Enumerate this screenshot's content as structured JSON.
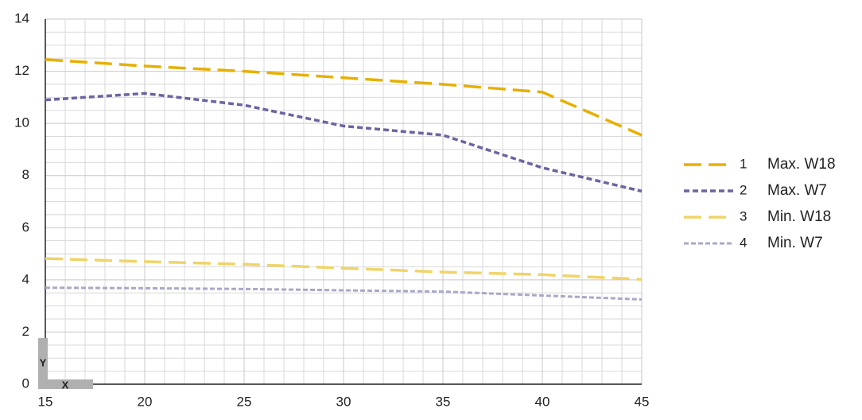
{
  "chart_data": {
    "type": "line",
    "xlabel": "X",
    "ylabel": "Y",
    "x": [
      15,
      20,
      25,
      30,
      35,
      40,
      45
    ],
    "series": [
      {
        "id": "1",
        "name": "Max. W18",
        "color": "#e6b000",
        "dash": "22 9",
        "width": 3.5,
        "values": [
          12.45,
          12.2,
          12.0,
          11.75,
          11.5,
          11.2,
          9.55
        ]
      },
      {
        "id": "2",
        "name": "Max. W7",
        "color": "#6b64a2",
        "dash": "7 4",
        "width": 3.5,
        "values": [
          10.9,
          11.15,
          10.7,
          9.9,
          9.55,
          8.3,
          7.4
        ]
      },
      {
        "id": "3",
        "name": "Min. W18",
        "color": "#f0d468",
        "dash": "22 9",
        "width": 3.5,
        "values": [
          4.82,
          4.7,
          4.6,
          4.45,
          4.3,
          4.2,
          4.02
        ]
      },
      {
        "id": "4",
        "name": "Min. W7",
        "color": "#aaa8c8",
        "dash": "6 3",
        "width": 3,
        "values": [
          3.7,
          3.68,
          3.65,
          3.6,
          3.55,
          3.4,
          3.25
        ]
      }
    ],
    "xlim": [
      15,
      45
    ],
    "ylim": [
      0,
      14
    ],
    "xticks": [
      15,
      20,
      25,
      30,
      35,
      40,
      45
    ],
    "yticks": [
      0,
      2,
      4,
      6,
      8,
      10,
      12,
      14
    ],
    "xminorticks": [
      16,
      17,
      18,
      19,
      21,
      22,
      23,
      24,
      26,
      27,
      28,
      29,
      31,
      32,
      33,
      34,
      36,
      37,
      38,
      39,
      41,
      42,
      43,
      44
    ],
    "yminorticks": [
      0.5,
      1,
      1.5,
      2.5,
      3,
      3.5,
      4.5,
      5,
      5.5,
      6.5,
      7,
      7.5,
      8.5,
      9,
      9.5,
      10.5,
      11,
      11.5,
      12.5,
      13,
      13.5
    ],
    "grid": true,
    "legend": "right"
  }
}
